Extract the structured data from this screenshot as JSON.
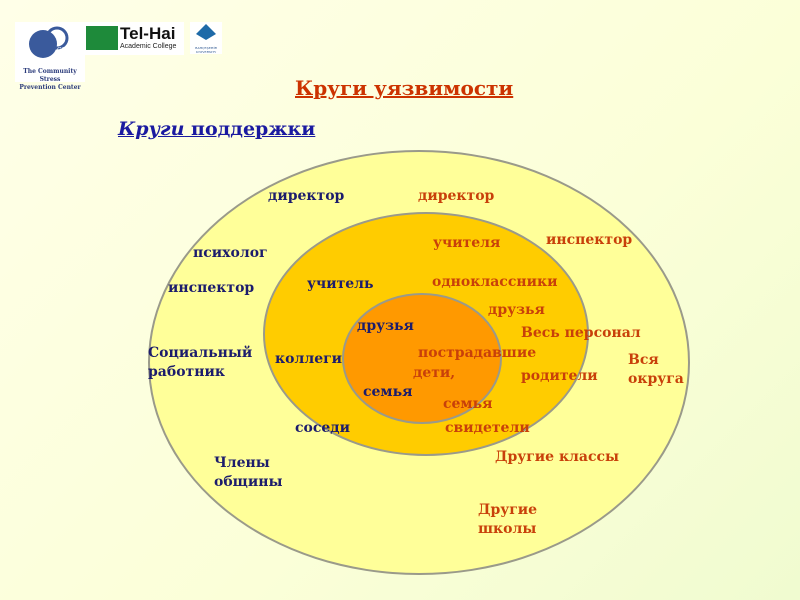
{
  "logos": {
    "cspc": {
      "badge": "CSPC",
      "line1": "The Community Stress",
      "line2": "Prevention Center"
    },
    "telhai": {
      "name": "Tel-Hai",
      "sub": "Academic College"
    },
    "bahcesehir": {
      "line1": "BAHÇEŞEHİR",
      "line2": "UNIVERSITY"
    }
  },
  "title": "Круги уязвимости",
  "subtitle": {
    "italic": "Круги",
    "rest": " поддержки"
  },
  "colors": {
    "outer": "#ffff99",
    "middle": "#ffcc00",
    "inner": "#ff9900",
    "support_text": "#1c1c6c",
    "vulnerability_text": "#c8400a",
    "title": "#cc3300",
    "subtitle": "#1a1aa0"
  },
  "support_labels": [
    "директор",
    "психолог",
    "инспектор",
    "Социальный",
    "работник",
    "Члены",
    "общины",
    "учитель",
    "коллеги",
    "соседи",
    "друзья",
    "семья"
  ],
  "vulnerability_labels": [
    "директор",
    "учителя",
    "инспектор",
    "одноклассники",
    "друзья",
    "Весь персонал",
    "Вся",
    "округа",
    "пострадавшие",
    "дети,",
    "родители",
    "семья",
    "свидетели",
    "Другие классы",
    "Другие",
    "школы"
  ]
}
